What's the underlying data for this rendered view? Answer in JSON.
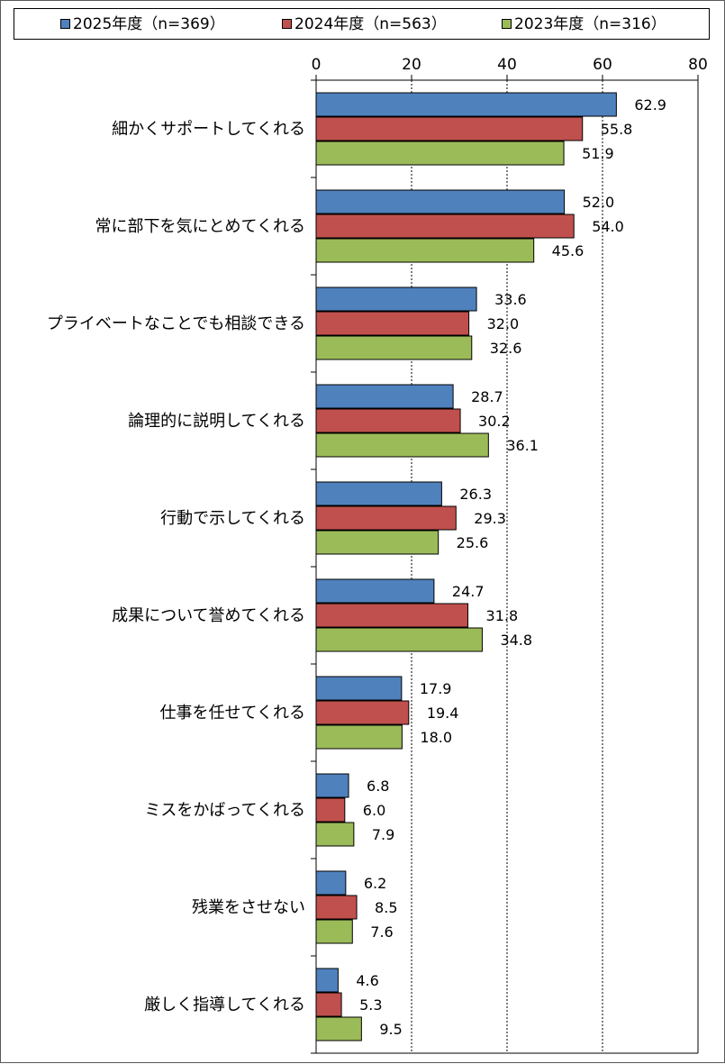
{
  "chart_data": {
    "type": "bar",
    "orientation": "horizontal",
    "categories": [
      "細かくサポートしてくれる",
      "常に部下を気にとめてくれる",
      "プライベートなことでも相談できる",
      "論理的に説明してくれる",
      "行動で示してくれる",
      "成果について誉めてくれる",
      "仕事を任せてくれる",
      "ミスをかばってくれる",
      "残業をさせない",
      "厳しく指導してくれる"
    ],
    "series": [
      {
        "name": "2025年度（n=369）",
        "color": "#4f81bd",
        "values": [
          62.9,
          52.0,
          33.6,
          28.7,
          26.3,
          24.7,
          17.9,
          6.8,
          6.2,
          4.6
        ]
      },
      {
        "name": "2024年度（n=563）",
        "color": "#c0504d",
        "values": [
          55.8,
          54.0,
          32.0,
          30.2,
          29.3,
          31.8,
          19.4,
          6.0,
          8.5,
          5.3
        ]
      },
      {
        "name": "2023年度（n=316）",
        "color": "#9bbb59",
        "values": [
          51.9,
          45.6,
          32.6,
          36.1,
          25.6,
          34.8,
          18.0,
          7.9,
          7.6,
          9.5
        ]
      }
    ],
    "xlim": [
      0,
      80
    ],
    "xticks": [
      0,
      20,
      40,
      60,
      80
    ],
    "grid": true,
    "legend_position": "top"
  }
}
